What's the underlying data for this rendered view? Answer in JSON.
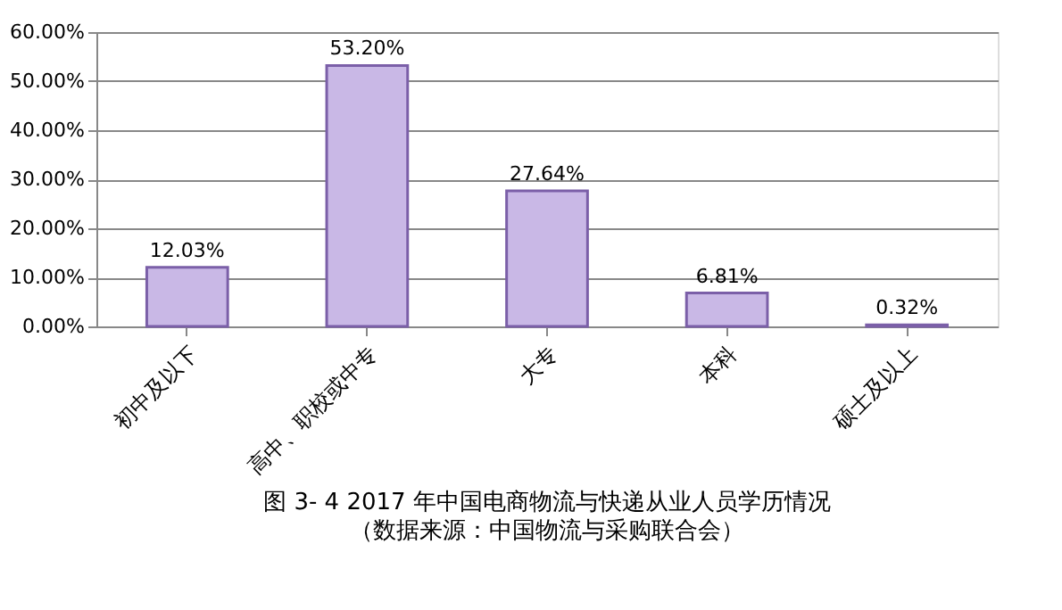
{
  "chart_data": {
    "type": "bar",
    "title": "图 3- 4   2017 年中国电商物流与快递从业人员学历情况",
    "subtitle": "（数据来源：中国物流与采购联合会）",
    "categories": [
      "初中及以下",
      "高中、职校或中专",
      "大专",
      "本科",
      "硕士及以上"
    ],
    "values": [
      12.03,
      53.2,
      27.64,
      6.81,
      0.32
    ],
    "value_labels": [
      "12.03%",
      "53.20%",
      "27.64%",
      "6.81%",
      "0.32%"
    ],
    "color": "#c9b8e6",
    "ylim": [
      0,
      60
    ],
    "yticks": [
      {
        "value": 0,
        "label": "0.00%"
      },
      {
        "value": 10,
        "label": "10.00%"
      },
      {
        "value": 20,
        "label": "20.00%"
      },
      {
        "value": 30,
        "label": "30.00%"
      },
      {
        "value": 40,
        "label": "40.00%"
      },
      {
        "value": 50,
        "label": "50.00%"
      },
      {
        "value": 60,
        "label": "60.00%"
      }
    ],
    "grid": "y"
  }
}
